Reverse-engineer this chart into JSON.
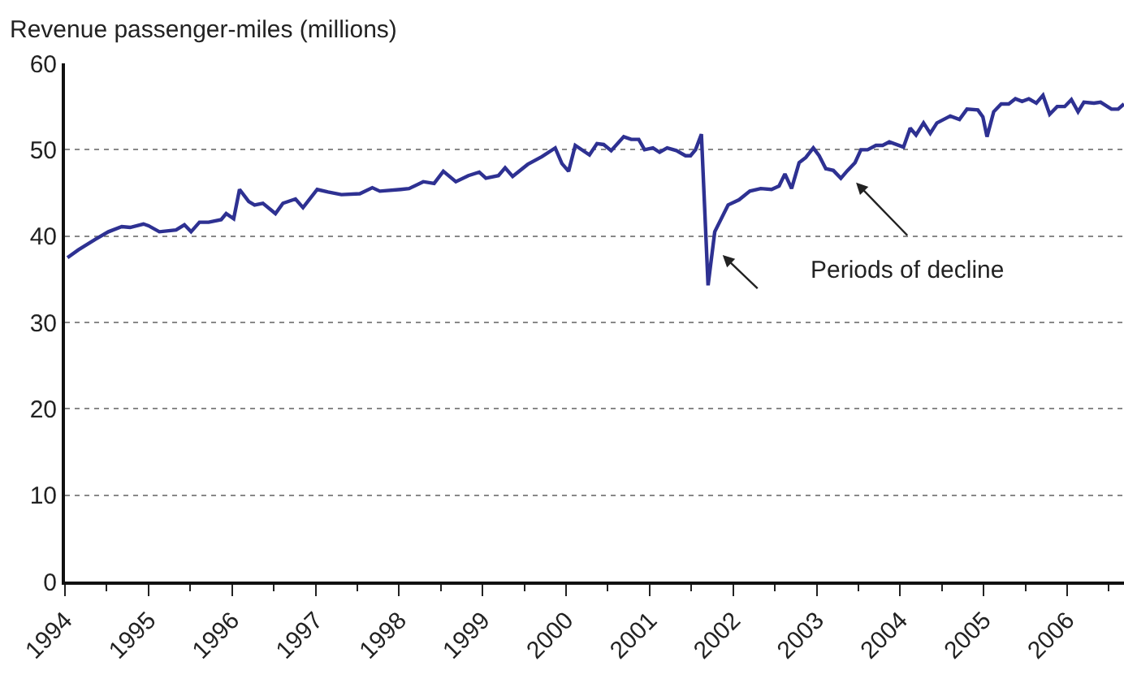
{
  "chart_data": {
    "type": "line",
    "ylabel": "Revenue passenger-miles (millions)",
    "annotations": [
      "Periods of decline"
    ],
    "x": [
      1994.03,
      1994.16,
      1994.36,
      1994.52,
      1994.68,
      1994.78,
      1994.94,
      1995.0,
      1995.13,
      1995.33,
      1995.43,
      1995.51,
      1995.61,
      1995.72,
      1995.87,
      1995.93,
      1996.02,
      1996.09,
      1996.2,
      1996.27,
      1996.37,
      1996.52,
      1996.61,
      1996.76,
      1996.85,
      1997.02,
      1997.15,
      1997.31,
      1997.53,
      1997.68,
      1997.77,
      1998.02,
      1998.12,
      1998.29,
      1998.42,
      1998.53,
      1998.68,
      1998.83,
      1998.96,
      1999.04,
      1999.19,
      1999.27,
      1999.36,
      1999.54,
      1999.71,
      1999.87,
      1999.95,
      2000.03,
      2000.11,
      2000.28,
      2000.37,
      2000.45,
      2000.54,
      2000.69,
      2000.78,
      2000.87,
      2000.94,
      2001.04,
      2001.12,
      2001.21,
      2001.32,
      2001.43,
      2001.49,
      2001.55,
      2001.62,
      2001.7,
      2001.78,
      2001.94,
      2002.07,
      2002.2,
      2002.33,
      2002.46,
      2002.55,
      2002.62,
      2002.7,
      2002.79,
      2002.87,
      2002.96,
      2003.03,
      2003.11,
      2003.2,
      2003.29,
      2003.37,
      2003.46,
      2003.53,
      2003.61,
      2003.71,
      2003.79,
      2003.87,
      2004.04,
      2004.12,
      2004.19,
      2004.28,
      2004.36,
      2004.44,
      2004.6,
      2004.71,
      2004.8,
      2004.93,
      2004.99,
      2005.04,
      2005.12,
      2005.21,
      2005.3,
      2005.38,
      2005.46,
      2005.54,
      2005.63,
      2005.71,
      2005.79,
      2005.88,
      2005.97,
      2006.05,
      2006.13,
      2006.2,
      2006.32,
      2006.4,
      2006.53,
      2006.61,
      2006.68
    ],
    "series": [
      {
        "color": "#2e3192",
        "values": [
          37.5,
          38.4,
          39.6,
          40.5,
          41.1,
          41.0,
          41.4,
          41.2,
          40.5,
          40.7,
          41.3,
          40.5,
          41.6,
          41.6,
          41.9,
          42.6,
          42.0,
          45.4,
          44.0,
          43.6,
          43.8,
          42.6,
          43.8,
          44.3,
          43.3,
          45.4,
          45.1,
          44.8,
          44.9,
          45.6,
          45.2,
          45.4,
          45.5,
          46.3,
          46.1,
          47.5,
          46.3,
          47.0,
          47.4,
          46.7,
          47.0,
          47.9,
          46.9,
          48.3,
          49.2,
          50.2,
          48.4,
          47.5,
          50.5,
          49.4,
          50.7,
          50.6,
          49.9,
          51.5,
          51.2,
          51.2,
          50.0,
          50.2,
          49.7,
          50.2,
          49.9,
          49.3,
          49.3,
          50.0,
          51.8,
          34.3,
          40.5,
          43.6,
          44.2,
          45.2,
          45.5,
          45.4,
          45.8,
          47.2,
          45.5,
          48.5,
          49.1,
          50.2,
          49.3,
          47.8,
          47.6,
          46.7,
          47.6,
          48.5,
          50.0,
          50.0,
          50.5,
          50.5,
          50.9,
          50.3,
          52.5,
          51.7,
          53.1,
          51.9,
          53.1,
          53.9,
          53.5,
          54.7,
          54.6,
          53.8,
          51.5,
          54.4,
          55.3,
          55.3,
          55.9,
          55.6,
          55.9,
          55.4,
          56.3,
          54.1,
          55.0,
          55.0,
          55.8,
          54.4,
          55.5,
          55.4,
          55.5,
          54.7,
          54.7,
          55.3
        ]
      }
    ],
    "xlim": [
      1994,
      2006.68
    ],
    "xticks": [
      1994,
      {
        "value": 1994.5,
        "label": null
      },
      1995,
      {
        "value": 1995.5,
        "label": null
      },
      1996,
      {
        "value": 1996.5,
        "label": null
      },
      1997,
      {
        "value": 1997.5,
        "label": null
      },
      1998,
      {
        "value": 1998.5,
        "label": null
      },
      1999,
      {
        "value": 1999.5,
        "label": null
      },
      2000,
      {
        "value": 2000.5,
        "label": null
      },
      2001,
      {
        "value": 2001.5,
        "label": null
      },
      2002,
      {
        "value": 2002.5,
        "label": null
      },
      2003,
      {
        "value": 2003.5,
        "label": null
      },
      2004,
      {
        "value": 2004.5,
        "label": null
      },
      2005,
      {
        "value": 2005.5,
        "label": null
      },
      2006,
      {
        "value": 2006.5,
        "label": null
      }
    ],
    "ylim": [
      0,
      60
    ],
    "yticks": [
      0,
      10,
      20,
      30,
      40,
      50,
      60
    ],
    "grid": "y",
    "line_style": "solid",
    "marker": "none"
  }
}
